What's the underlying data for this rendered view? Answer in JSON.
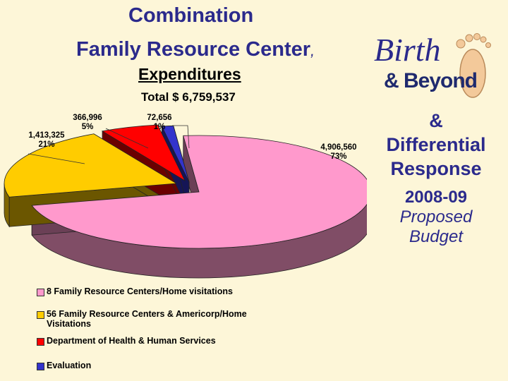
{
  "header": {
    "title_line1": "Combination",
    "title_line2": "Family Resource Center",
    "title_comma": ",",
    "heading": "Expenditures",
    "total": "Total $ 6,759,537"
  },
  "logo": {
    "word1": "Birth",
    "word2": "& Beyond"
  },
  "side": {
    "ampersand": "&",
    "line1": "Differential",
    "line2": "Response",
    "year": "2008-09",
    "line3": "Proposed",
    "line4": "Budget"
  },
  "colors": {
    "title": "#2b2a8c",
    "background": "#fdf6d8",
    "pink": "#ff99cc",
    "yellow": "#ffcc00",
    "red": "#ff0000",
    "blue": "#3333cc"
  },
  "chart_data": {
    "type": "pie",
    "title": "Expenditures",
    "subtitle": "Total $ 6,759,537",
    "legend_position": "bottom-left",
    "slices": [
      {
        "label": "8 Family Resource Centers/Home visitations",
        "value": 4906560,
        "value_label": "4,906,560",
        "percent_label": "73%",
        "color": "#ff99cc"
      },
      {
        "label": "56 Family Resource Centers & Americorp/Home Visitations",
        "value": 1413325,
        "value_label": "1,413,325",
        "percent_label": "21%",
        "color": "#ffcc00"
      },
      {
        "label": "Department of Health & Human Services",
        "value": 366996,
        "value_label": "366,996",
        "percent_label": "5%",
        "color": "#ff0000"
      },
      {
        "label": "Evaluation",
        "value": 72656,
        "value_label": "72,656",
        "percent_label": "1%",
        "color": "#3333cc"
      }
    ]
  }
}
